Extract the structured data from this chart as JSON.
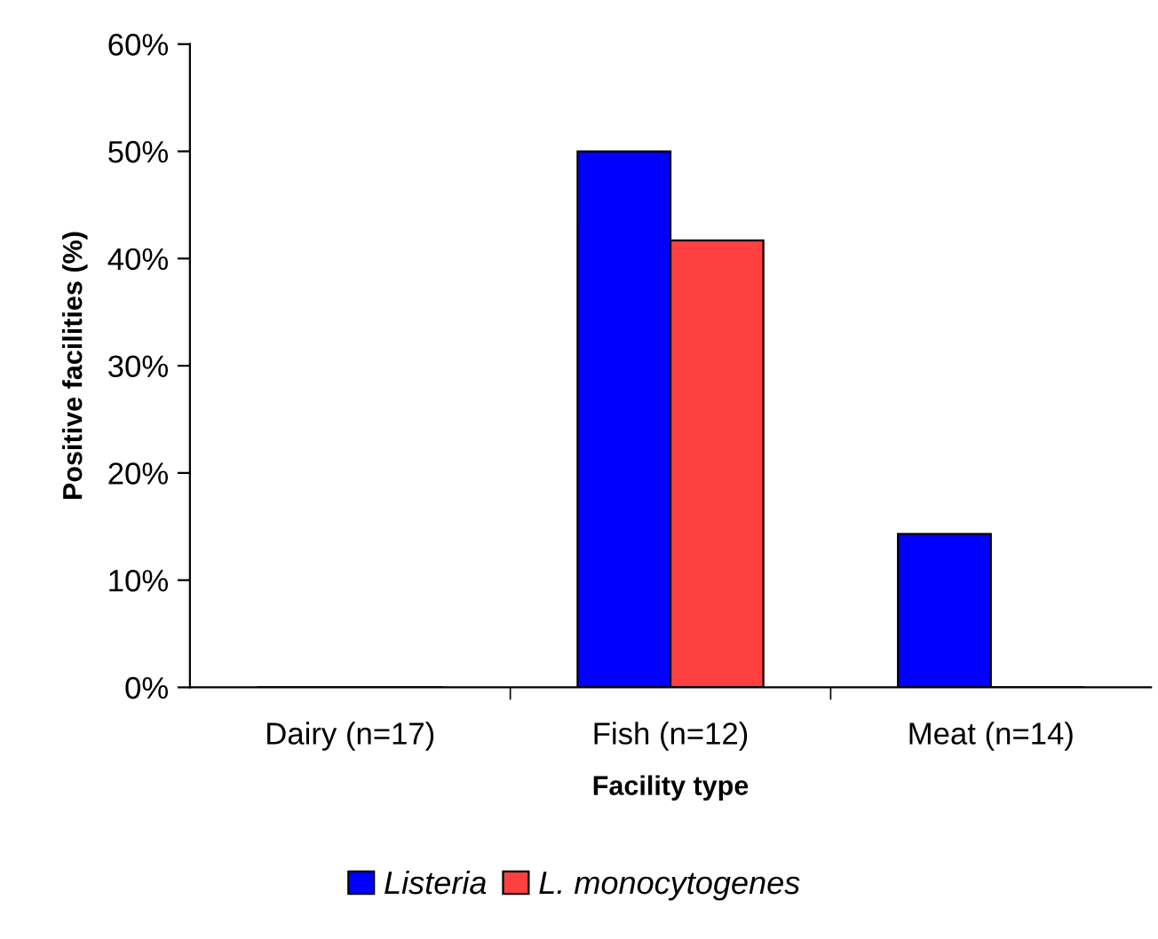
{
  "chart_data": {
    "type": "bar",
    "xlabel": "Facility type",
    "ylabel": "Positive facilities (%)",
    "categories": [
      "Dairy (n=17)",
      "Fish (n=12)",
      "Meat (n=14)"
    ],
    "series": [
      {
        "name": "Listeria",
        "color": "#0000ff",
        "values": [
          0,
          50,
          14.3
        ]
      },
      {
        "name": "L. monocytogenes",
        "color": "#ff4040",
        "values": [
          0,
          41.7,
          0
        ]
      }
    ],
    "ylim": [
      0,
      60
    ],
    "yticks": [
      {
        "value": 0,
        "label": "0%"
      },
      {
        "value": 10,
        "label": "10%"
      },
      {
        "value": 20,
        "label": "20%"
      },
      {
        "value": 30,
        "label": "30%"
      },
      {
        "value": 40,
        "label": "40%"
      },
      {
        "value": 50,
        "label": "50%"
      },
      {
        "value": 60,
        "label": "60%"
      }
    ],
    "grid": false,
    "legend": "bottom"
  }
}
